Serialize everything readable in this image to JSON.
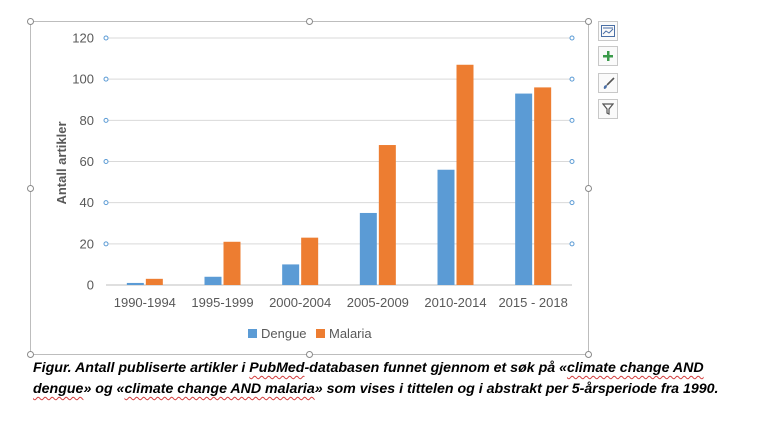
{
  "chart_data": {
    "type": "bar",
    "categories": [
      "1990-1994",
      "1995-1999",
      "2000-2004",
      "2005-2009",
      "2010-2014",
      "2015 - 2018"
    ],
    "series": [
      {
        "name": "Dengue",
        "color": "#5b9bd5",
        "values": [
          1,
          4,
          10,
          35,
          56,
          93
        ]
      },
      {
        "name": "Malaria",
        "color": "#ed7d31",
        "values": [
          3,
          21,
          23,
          68,
          107,
          96
        ]
      }
    ],
    "ylabel": "Antall artikler",
    "ylim": [
      0,
      120
    ],
    "yticks": [
      0,
      20,
      40,
      60,
      80,
      100,
      120
    ],
    "grid": true,
    "legend_position": "bottom"
  },
  "caption": {
    "part1": "Figur. Antall publiserte artikler i ",
    "pubmed": "PubMed",
    "part2": "-databasen funnet gjennom et søk på «",
    "climate1": "climate change AND",
    "dengue": "dengue",
    "part3": "» og «",
    "climate2": "climate change AND malaria",
    "part4": "» som vises i tittelen og i abstrakt per 5-årsperiode fra 1990."
  },
  "toolbar": {
    "layout_icon": "chart-layout-icon",
    "elements_icon": "plus-icon",
    "styles_icon": "brush-icon",
    "filter_icon": "filter-icon"
  }
}
